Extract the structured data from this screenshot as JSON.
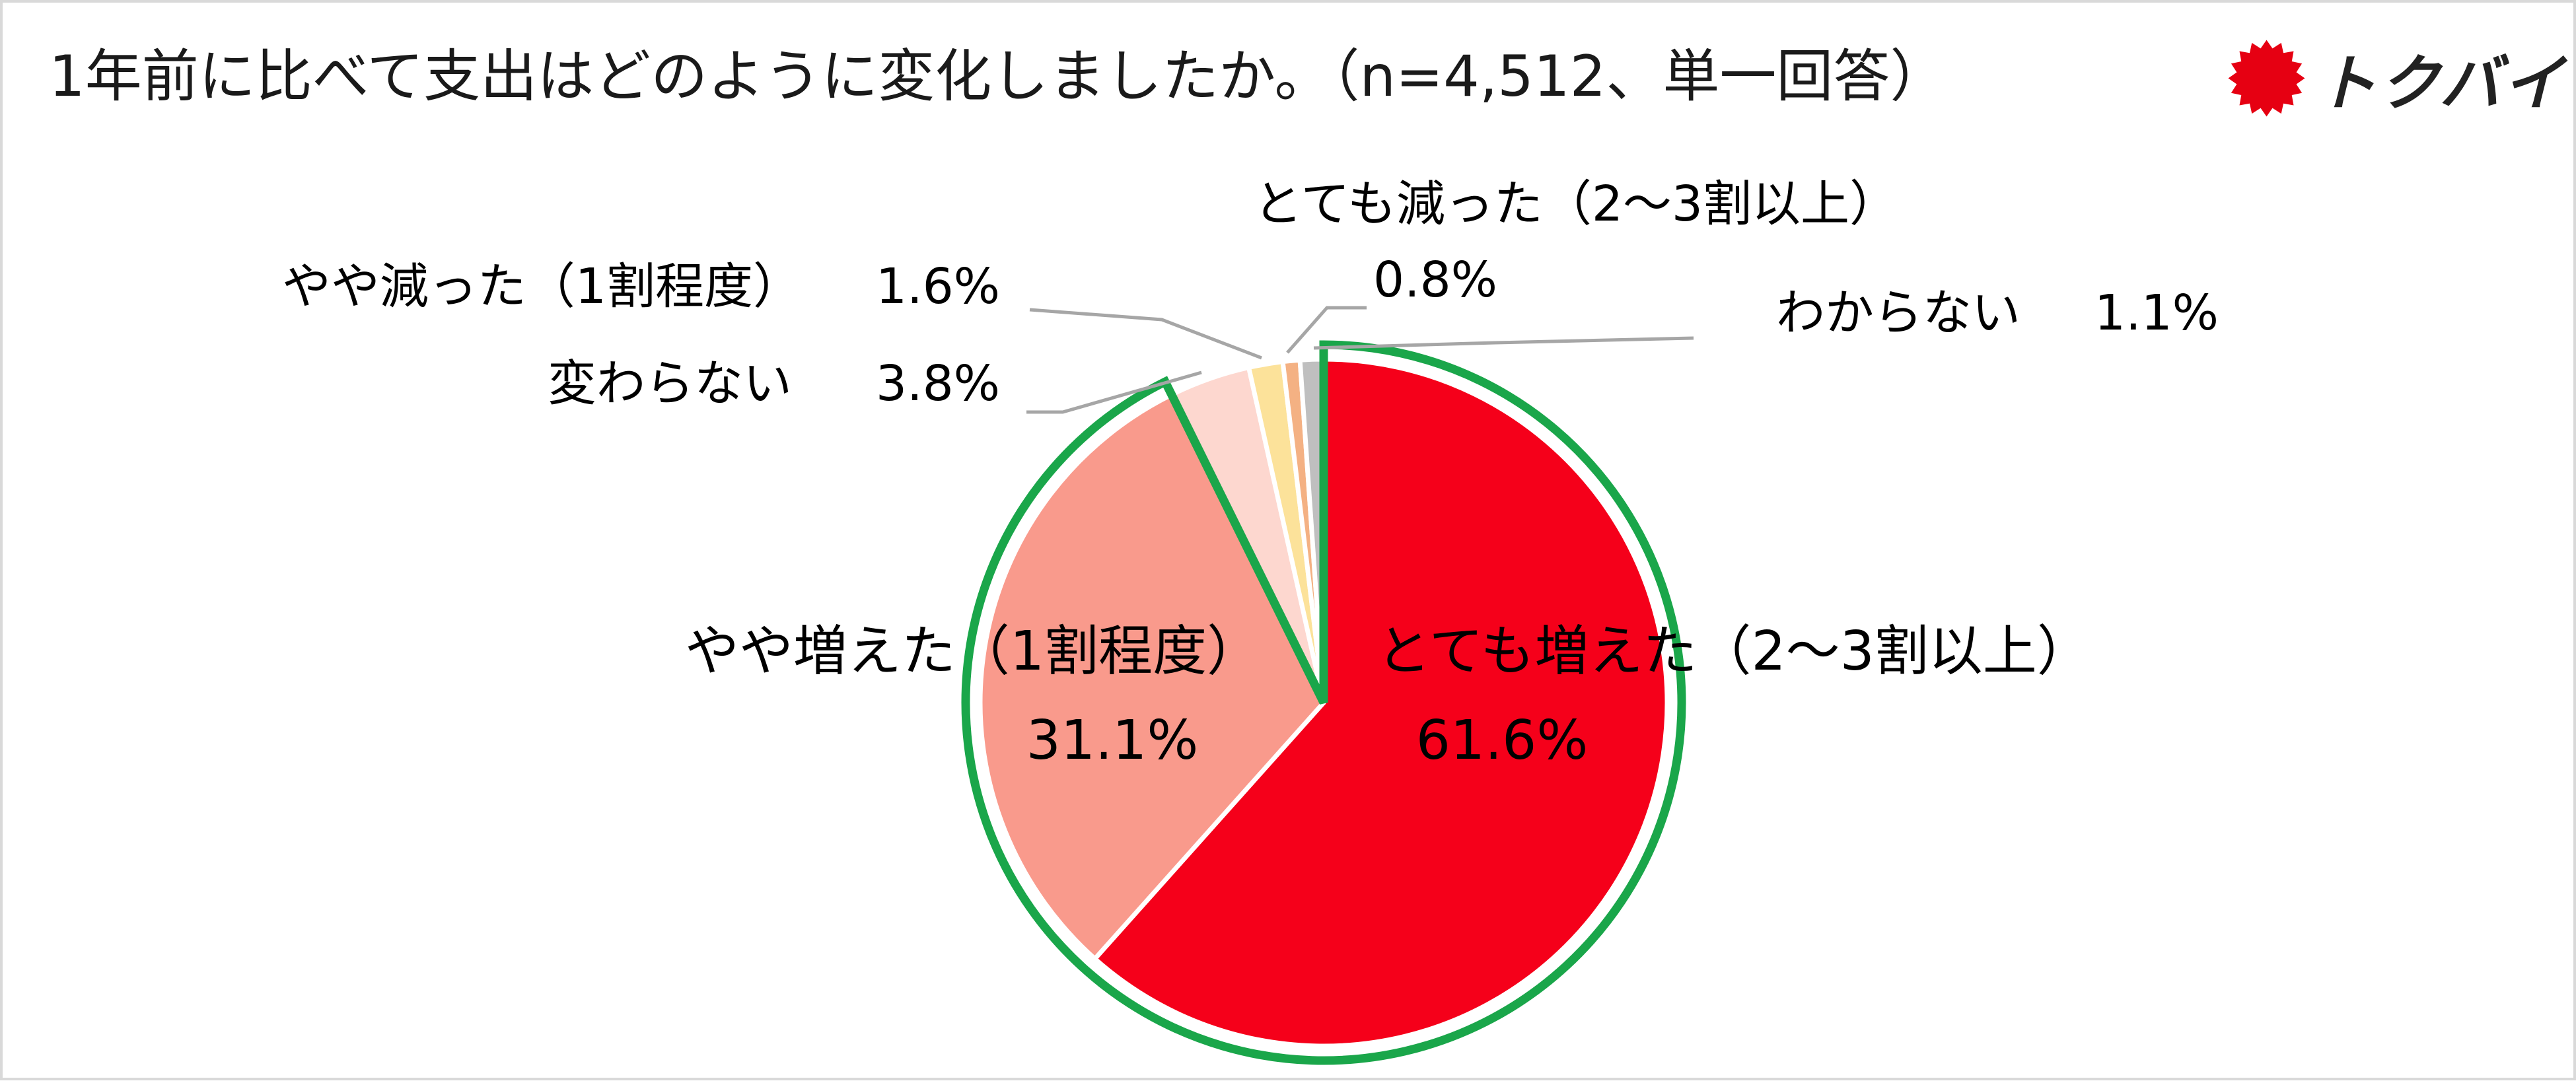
{
  "header": {
    "title": "1年前に比べて支出はどのように変化しましたか。（n=4,512、単一回答）"
  },
  "brand": {
    "name": "トクバイ",
    "icon": "red-sun-icon",
    "color": "#e60012"
  },
  "chart_data": {
    "type": "pie",
    "title": "1年前に比べて支出はどのように変化しましたか。（n=4,512、単一回答）",
    "unit": "%",
    "start_angle_deg": 0,
    "direction": "clockwise",
    "highlight": {
      "series": [
        "とても増えた（2〜3割以上）",
        "やや増えた（1割程度）"
      ],
      "outline_color": "#1aa64a"
    },
    "slices": [
      {
        "label": "とても増えた（2〜3割以上）",
        "value": 61.6,
        "value_label": "61.6%",
        "color": "#f5001a"
      },
      {
        "label": "やや増えた（1割程度）",
        "value": 31.1,
        "value_label": "31.1%",
        "color": "#f99a8c"
      },
      {
        "label": "変わらない",
        "value": 3.8,
        "value_label": "3.8%",
        "color": "#fdd7cf"
      },
      {
        "label": "やや減った（1割程度）",
        "value": 1.6,
        "value_label": "1.6%",
        "color": "#fce29a"
      },
      {
        "label": "とても減った（2〜3割以上）",
        "value": 0.8,
        "value_label": "0.8%",
        "color": "#f4b183"
      },
      {
        "label": "わからない",
        "value": 1.1,
        "value_label": "1.1%",
        "color": "#bfbfbf"
      }
    ]
  }
}
